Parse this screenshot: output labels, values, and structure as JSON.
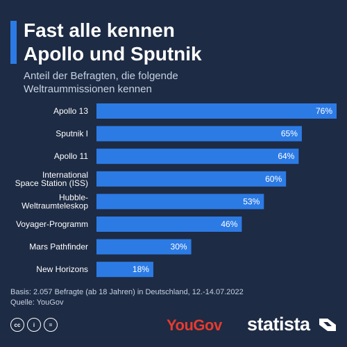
{
  "header": {
    "title_line1": "Fast alle kennen",
    "title_line2": "Apollo und Sputnik",
    "subtitle_line1": "Anteil der Befragten, die folgende",
    "subtitle_line2": "Weltraummissionen kennen"
  },
  "chart_data": {
    "type": "bar",
    "orientation": "horizontal",
    "categories": [
      [
        "Apollo 13"
      ],
      [
        "Sputnik I"
      ],
      [
        "Apollo 11"
      ],
      [
        "International",
        "Space Station (ISS)"
      ],
      [
        "Hubble-",
        "Weltraumteleskop"
      ],
      [
        "Voyager-Programm"
      ],
      [
        "Mars Pathfinder"
      ],
      [
        "New Horizons"
      ]
    ],
    "values": [
      76,
      65,
      64,
      60,
      53,
      46,
      30,
      18
    ],
    "value_labels": [
      "76%",
      "65%",
      "64%",
      "60%",
      "53%",
      "46%",
      "30%",
      "18%"
    ],
    "xlim": [
      0,
      76
    ],
    "bar_color": "#2c7be5",
    "grid": false,
    "legend": "none"
  },
  "footer": {
    "basis": "Basis: 2.057 Befragte (ab 18 Jahren) in Deutschland, 12.-14.07.2022",
    "source": "Quelle: YouGov",
    "yougov_logo": "YouGov",
    "statista_logo": "statista",
    "cc_icons": [
      "cc",
      "i",
      "="
    ]
  },
  "colors": {
    "background": "#1d2b44",
    "bar": "#2c7be5",
    "accent": "#2c7be5",
    "yougov": "#e63a2e"
  }
}
